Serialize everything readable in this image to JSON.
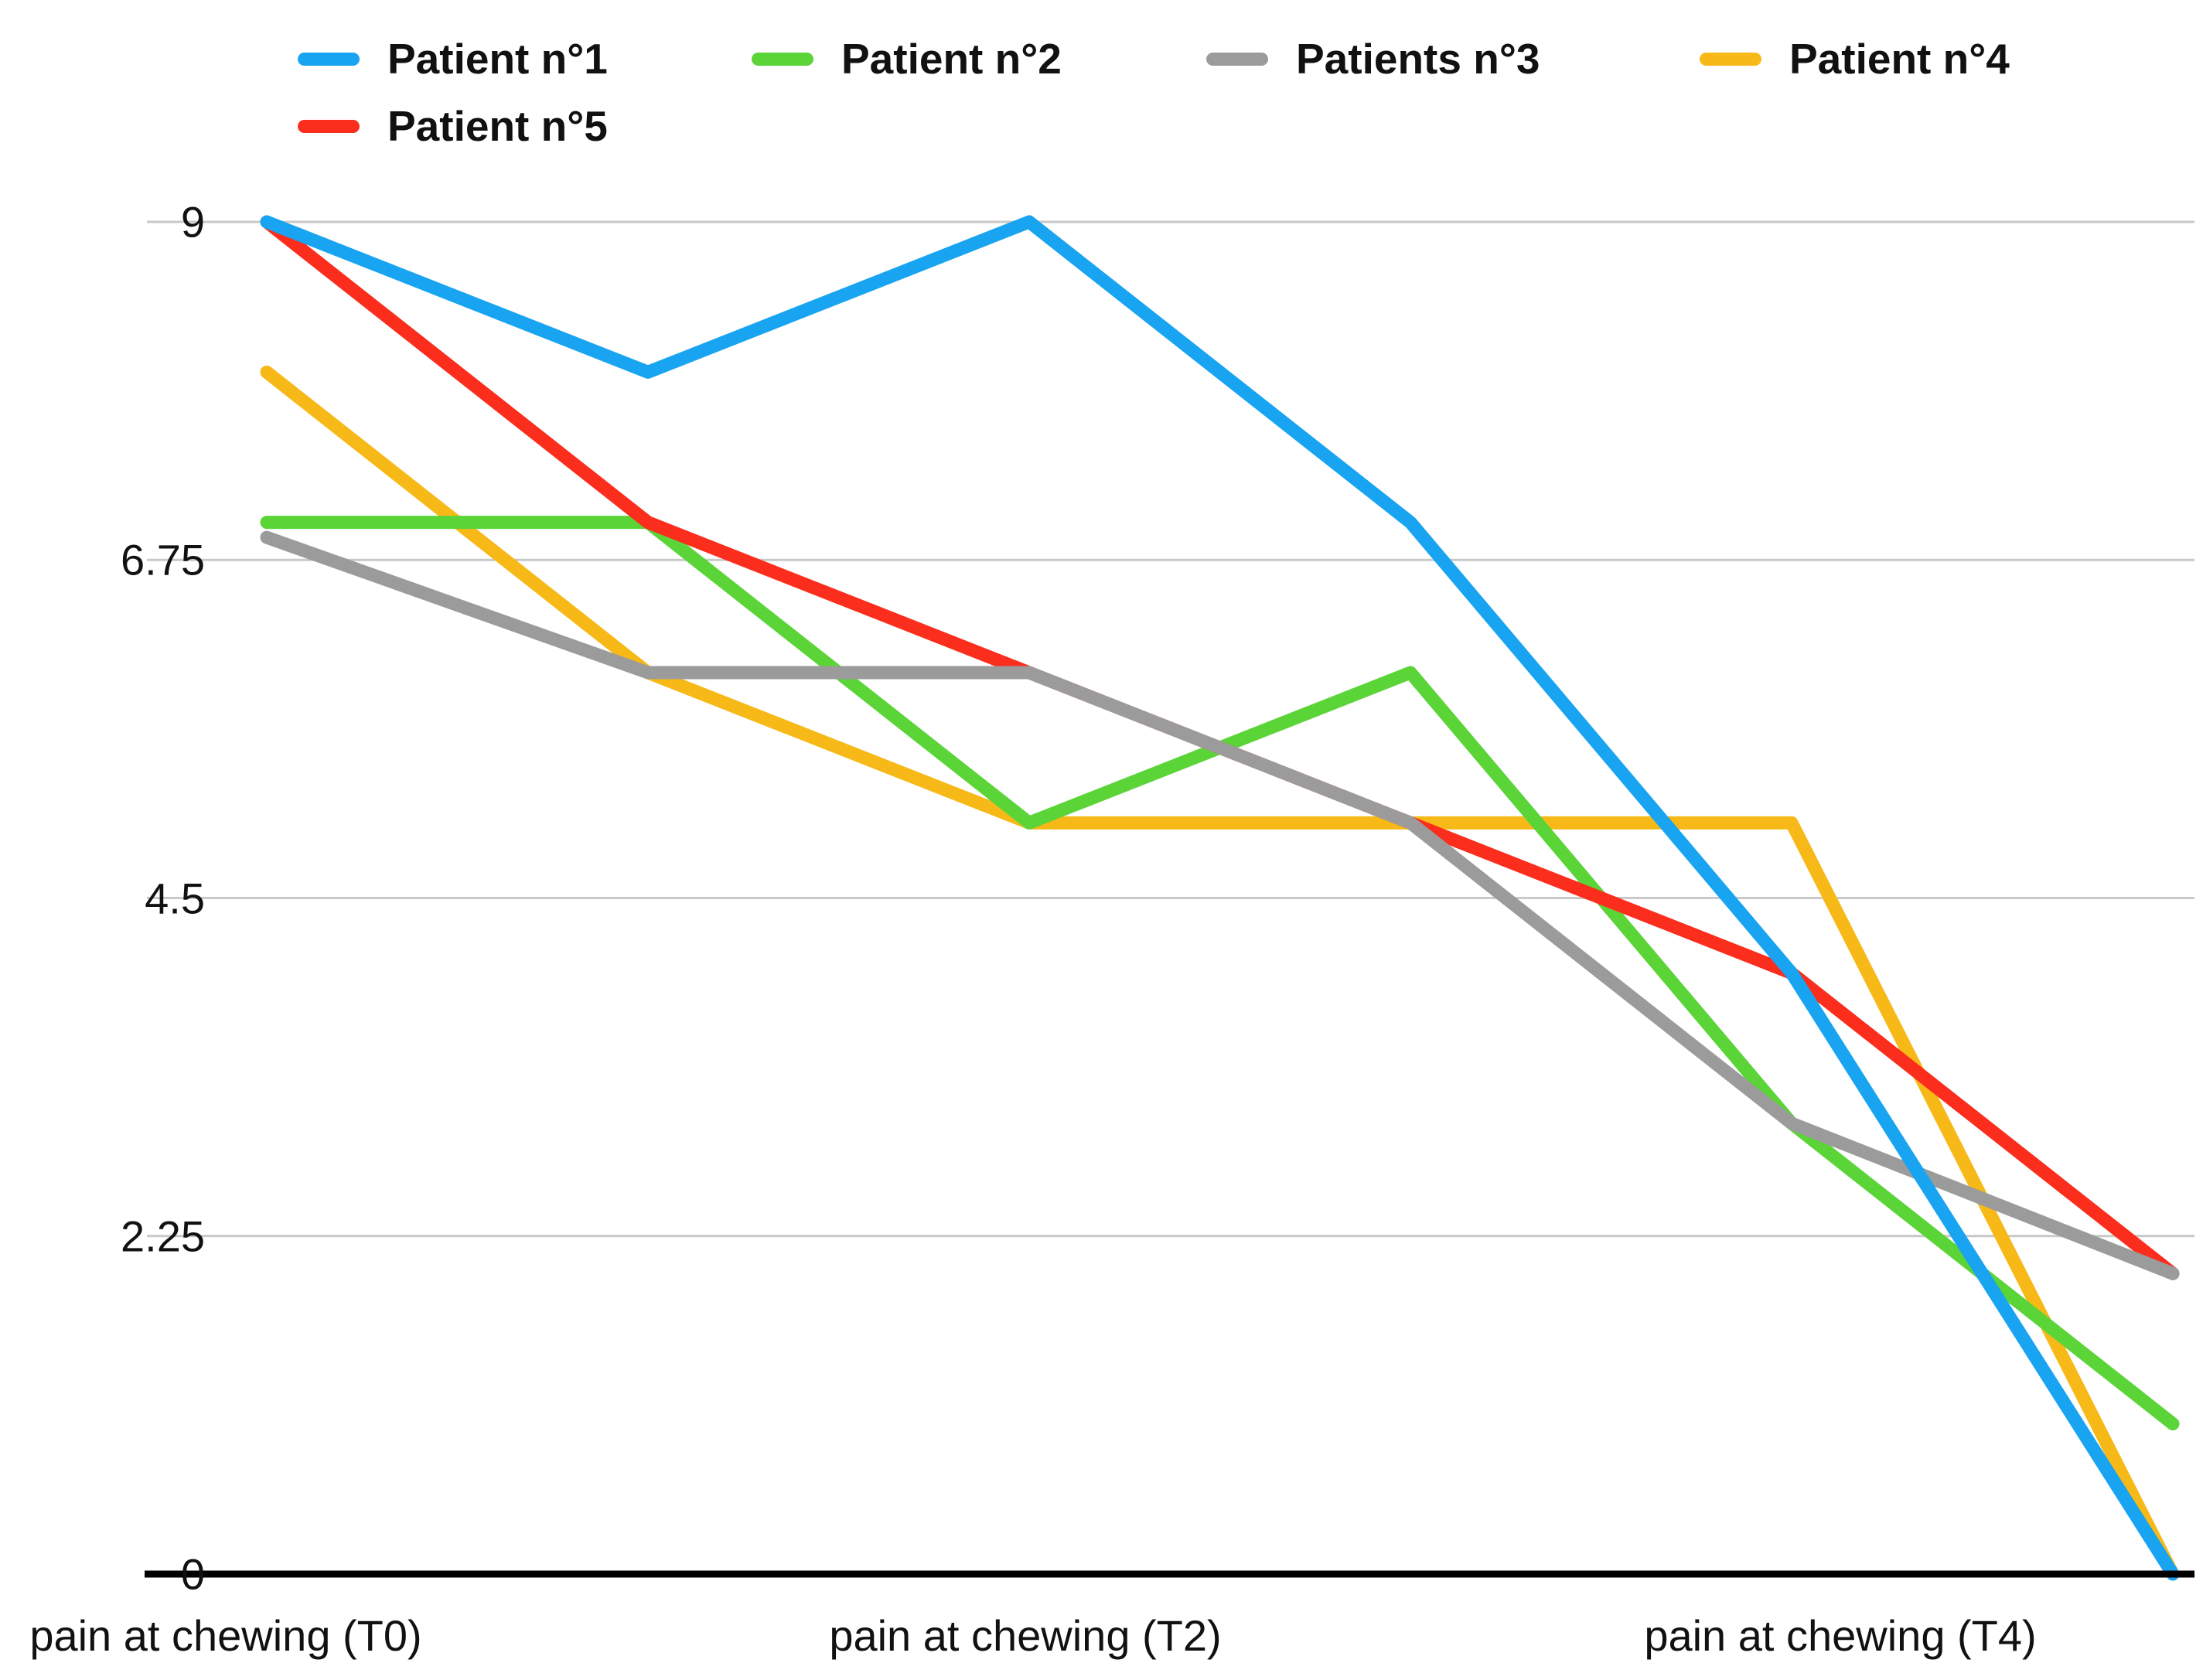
{
  "figure": {
    "background": "#FFFFFF"
  },
  "chart_data": {
    "type": "line",
    "title": "",
    "xlabel": "",
    "ylabel": "",
    "num_points": 6,
    "x_axis": {
      "visible_tick_labels": [
        {
          "point_index": 0,
          "label": "pain at chewing (T0)"
        },
        {
          "point_index": 2,
          "label": "pain at chewing (T2)"
        },
        {
          "point_index": 4,
          "label": "pain at chewing (T4)"
        }
      ],
      "note_hidden_points": "6 evenly spaced data points; only alternate category labels are displayed"
    },
    "y_axis": {
      "range": [
        0,
        9
      ],
      "tick_labels": [
        "9",
        "6.75",
        "4.5",
        "2.25",
        "0"
      ],
      "tick_values": [
        9,
        6.75,
        4.5,
        2.25,
        0
      ],
      "grid": true,
      "gridline_color": "#C9C9C9",
      "baseline_color": "#000000"
    },
    "series": [
      {
        "name": "Patient n°1",
        "color": "#18A4F0",
        "values": [
          9,
          8,
          9,
          7,
          4,
          0
        ]
      },
      {
        "name": "Patient n°2",
        "color": "#5BD438",
        "values": [
          7,
          7,
          5,
          6,
          3,
          1
        ]
      },
      {
        "name": "Patients n°3",
        "color": "#9B9B9B",
        "values": [
          6.9,
          6,
          6,
          5,
          3,
          2
        ]
      },
      {
        "name": "Patient n°4",
        "color": "#F7B918",
        "values": [
          8,
          6,
          5,
          5,
          5,
          0
        ]
      },
      {
        "name": "Patient n°5",
        "color": "#FB2D1C",
        "values": [
          9,
          7,
          6,
          5,
          4,
          2
        ]
      }
    ],
    "legend": {
      "position": "top-left",
      "rows": [
        [
          "Patient n°1",
          "Patient n°2",
          "Patients n°3",
          "Patient n°4"
        ],
        [
          "Patient n°5"
        ]
      ]
    },
    "draw_order": [
      "Patient n°4",
      "Patient n°2",
      "Patient n°5",
      "Patients n°3",
      "Patient n°1"
    ],
    "line_width": 17
  }
}
